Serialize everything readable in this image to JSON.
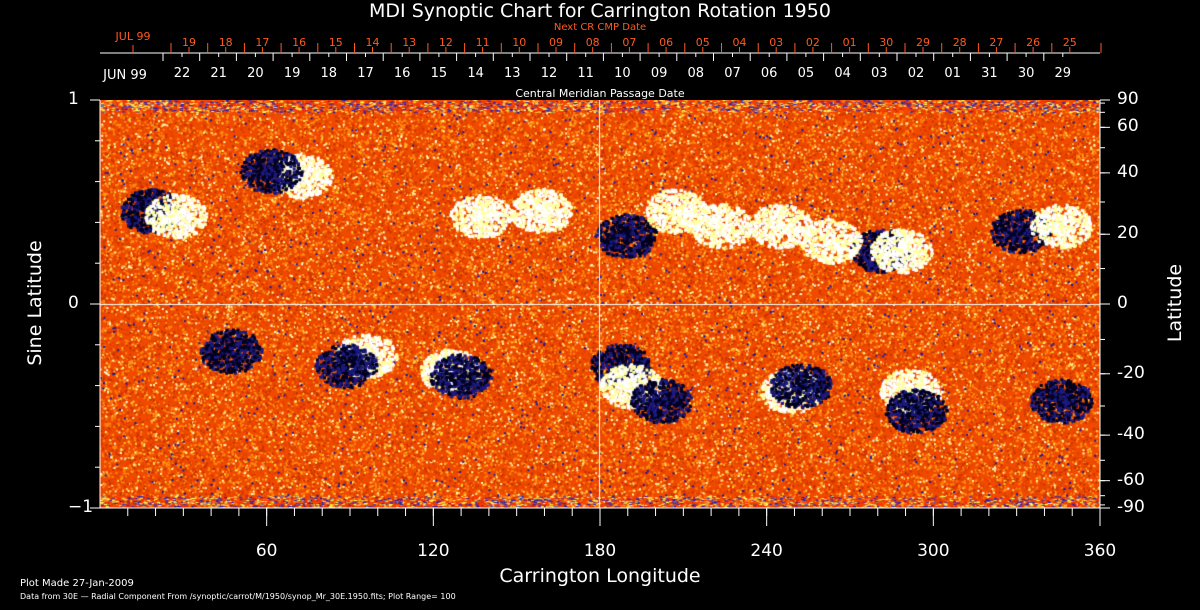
{
  "chart_data": {
    "type": "heatmap",
    "title": "MDI Synoptic Chart for Carrington Rotation 1950",
    "xlabel": "Carrington Longitude",
    "ylabel": "Sine Latitude",
    "ylabel_right": "Latitude",
    "xlim": [
      0,
      360
    ],
    "ylim": [
      -1,
      1
    ],
    "xticks": [
      60,
      120,
      180,
      240,
      300,
      360
    ],
    "yticks_left": [
      {
        "v": 1,
        "label": "1"
      },
      {
        "v": 0,
        "label": "0"
      },
      {
        "v": -1,
        "label": "−1"
      }
    ],
    "yticks_right": [
      90,
      60,
      40,
      20,
      0,
      -20,
      -40,
      -60,
      -90
    ],
    "colors": {
      "background": "#ff5a00",
      "positive": "#ffffff",
      "negative": "#000033",
      "grid": "#ffffff"
    },
    "top_axis": {
      "title": "Next CR CMP Date",
      "month_label": "JUL 99",
      "dates": [
        "19",
        "18",
        "17",
        "16",
        "15",
        "14",
        "13",
        "12",
        "11",
        "10",
        "09",
        "08",
        "07",
        "06",
        "05",
        "04",
        "03",
        "02",
        "01",
        "30",
        "29",
        "28",
        "27",
        "26",
        "25"
      ]
    },
    "cmp_axis": {
      "title": "Central Meridian Passage Date",
      "month_label": "JUN 99",
      "dates": [
        "22",
        "21",
        "20",
        "19",
        "18",
        "17",
        "16",
        "15",
        "14",
        "13",
        "12",
        "11",
        "10",
        "09",
        "08",
        "07",
        "06",
        "05",
        "04",
        "03",
        "02",
        "01",
        "31",
        "30",
        "29"
      ]
    }
  },
  "footer": {
    "plot_made": "Plot Made 27-Jan-2009",
    "data_source": "Data from 30E — Radial Component From /synoptic/carrot/M/1950/synop_Mr_30E.1950.fits; Plot Range=  100"
  }
}
